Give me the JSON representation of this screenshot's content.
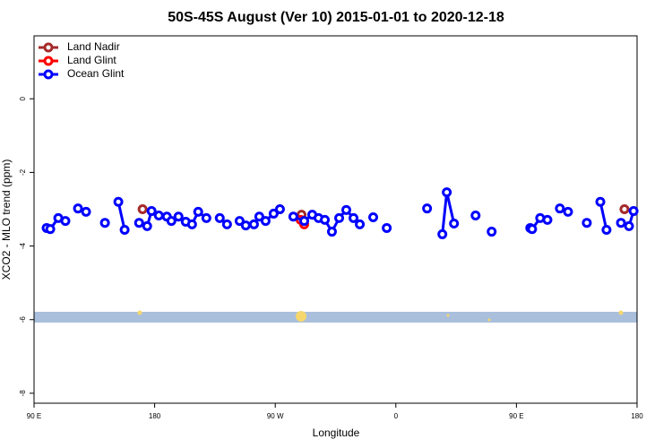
{
  "chart_data": {
    "type": "line",
    "title": "50S-45S August (Ver 10)   2015-01-01 to 2020-12-18",
    "x_label": "Longitude",
    "y_label": "XCO2 - MLO trend (ppm)",
    "xlim": [
      90,
      540
    ],
    "ylim": [
      -8.27,
      1.71
    ],
    "xticks": [
      {
        "value": 90,
        "label": "90 E"
      },
      180,
      {
        "value": 270,
        "label": "90 W"
      },
      {
        "value": 360,
        "label": "0"
      },
      {
        "value": 450,
        "label": "90 E"
      },
      {
        "value": 540,
        "label": "180"
      }
    ],
    "yticks": [
      0,
      -2,
      -4,
      -6,
      -8
    ],
    "legend": "top-left",
    "series": [
      {
        "name": "Land Nadir",
        "color": "#a52a2a",
        "x": [
          171.0,
          null,
          289.6,
          null,
          530.6
        ],
        "values": [
          -3.0,
          null,
          -3.15,
          null,
          -3.0
        ]
      },
      {
        "name": "Land Glint",
        "color": "#ff0000",
        "x": [
          288.9,
          291.6
        ],
        "values": [
          -3.29,
          -3.41
        ]
      },
      {
        "name": "Ocean Glint",
        "color": "#0000ff",
        "x": [
          99.4,
          102.1,
          108.1,
          113.4,
          null,
          122.8,
          128.8,
          null,
          142.9,
          null,
          152.9,
          157.6,
          null,
          168.4,
          174.4,
          177.7,
          183.1,
          189.1,
          192.5,
          197.8,
          203.2,
          207.9,
          212.5,
          218.6,
          null,
          228.6,
          234.0,
          null,
          243.4,
          248.0,
          254.1,
          258.1,
          262.8,
          268.8,
          273.5,
          null,
          283.5,
          291.6,
          297.6,
          302.3,
          307.0,
          312.3,
          317.7,
          323.0,
          328.4,
          333.1,
          null,
          343.1,
          null,
          353.2,
          null,
          383.3,
          null,
          394.7,
          398.0,
          403.4,
          null,
          419.5,
          null,
          431.5,
          null,
          460.3,
          461.7,
          467.7,
          473.1,
          null,
          482.4,
          488.5,
          null,
          502.5,
          null,
          512.6,
          517.2,
          null,
          528.0,
          534.0,
          537.4
        ],
        "values": [
          -3.51,
          -3.54,
          -3.24,
          -3.32,
          null,
          -2.98,
          -3.07,
          null,
          -3.37,
          null,
          -2.8,
          -3.56,
          null,
          -3.37,
          -3.46,
          -3.05,
          -3.17,
          -3.2,
          -3.32,
          -3.2,
          -3.34,
          -3.41,
          -3.07,
          -3.24,
          null,
          -3.24,
          -3.41,
          null,
          -3.32,
          -3.44,
          -3.41,
          -3.2,
          -3.32,
          -3.12,
          -3.0,
          null,
          -3.2,
          -3.32,
          -3.15,
          -3.24,
          -3.29,
          -3.61,
          -3.24,
          -3.02,
          -3.24,
          -3.41,
          null,
          -3.22,
          null,
          -3.51,
          null,
          -2.98,
          null,
          -3.68,
          -2.54,
          -3.39,
          null,
          -3.17,
          null,
          -3.61,
          null,
          -3.51,
          -3.54,
          -3.24,
          -3.29,
          null,
          -2.98,
          -3.07,
          null,
          -3.37,
          null,
          -2.8,
          -3.56,
          null,
          -3.37,
          -3.46,
          -3.05
        ]
      }
    ]
  }
}
